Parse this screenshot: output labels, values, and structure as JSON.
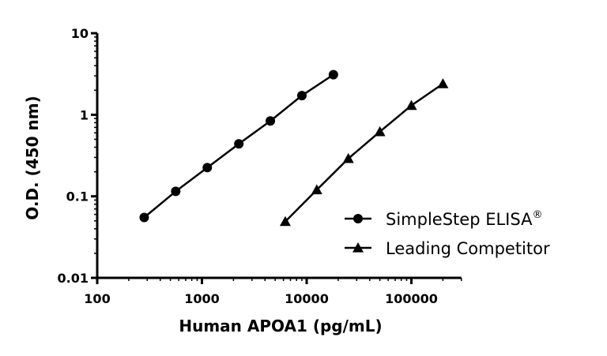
{
  "chart_data": {
    "type": "line",
    "title": "",
    "xlabel": "Human APOA1 (pg/mL)",
    "ylabel": "O.D. (450 nm)",
    "xscale": "log",
    "yscale": "log",
    "xlim": [
      100,
      300000
    ],
    "ylim": [
      0.01,
      10
    ],
    "xticks": [
      "100",
      "1000",
      "10000",
      "100000"
    ],
    "yticks": [
      "0.01",
      "0.1",
      "1",
      "10"
    ],
    "grid": false,
    "legend_position": "right",
    "colors": {
      "line": "#000000",
      "marker": "#000000",
      "axis": "#000000"
    },
    "series": [
      {
        "name": "SimpleStep ELISA",
        "name_superscript": "®",
        "marker": "circle",
        "x": [
          281,
          562,
          1125,
          2250,
          4500,
          9000,
          18000
        ],
        "y": [
          0.055,
          0.115,
          0.225,
          0.44,
          0.84,
          1.72,
          3.1
        ]
      },
      {
        "name": "Leading Competitor",
        "name_superscript": "",
        "marker": "triangle",
        "x": [
          6250,
          12500,
          25000,
          50000,
          100000,
          200000
        ],
        "y": [
          0.049,
          0.12,
          0.29,
          0.62,
          1.3,
          2.4
        ]
      }
    ]
  }
}
